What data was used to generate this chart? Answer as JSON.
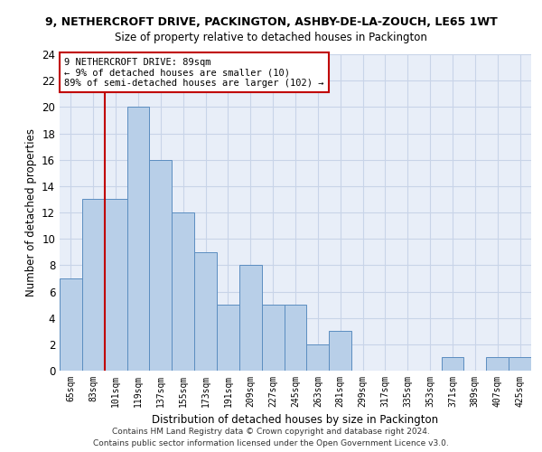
{
  "title": "9, NETHERCROFT DRIVE, PACKINGTON, ASHBY-DE-LA-ZOUCH, LE65 1WT",
  "subtitle": "Size of property relative to detached houses in Packington",
  "xlabel": "Distribution of detached houses by size in Packington",
  "ylabel": "Number of detached properties",
  "bin_labels": [
    "65sqm",
    "83sqm",
    "101sqm",
    "119sqm",
    "137sqm",
    "155sqm",
    "173sqm",
    "191sqm",
    "209sqm",
    "227sqm",
    "245sqm",
    "263sqm",
    "281sqm",
    "299sqm",
    "317sqm",
    "335sqm",
    "353sqm",
    "371sqm",
    "389sqm",
    "407sqm",
    "425sqm"
  ],
  "values": [
    7,
    13,
    13,
    20,
    16,
    12,
    9,
    5,
    8,
    5,
    5,
    2,
    3,
    0,
    0,
    0,
    0,
    1,
    0,
    1,
    1
  ],
  "bar_color": "#b8cfe8",
  "bar_edge_color": "#5b8dc0",
  "highlight_color": "#c00000",
  "annotation_text": "9 NETHERCROFT DRIVE: 89sqm\n← 9% of detached houses are smaller (10)\n89% of semi-detached houses are larger (102) →",
  "annotation_box_color": "#ffffff",
  "annotation_box_edge_color": "#c00000",
  "vline_x_index": 1.5,
  "ylim": [
    0,
    24
  ],
  "yticks": [
    0,
    2,
    4,
    6,
    8,
    10,
    12,
    14,
    16,
    18,
    20,
    22,
    24
  ],
  "grid_color": "#c8d4e8",
  "bg_color": "#e8eef8",
  "footer_line1": "Contains HM Land Registry data © Crown copyright and database right 2024.",
  "footer_line2": "Contains public sector information licensed under the Open Government Licence v3.0."
}
